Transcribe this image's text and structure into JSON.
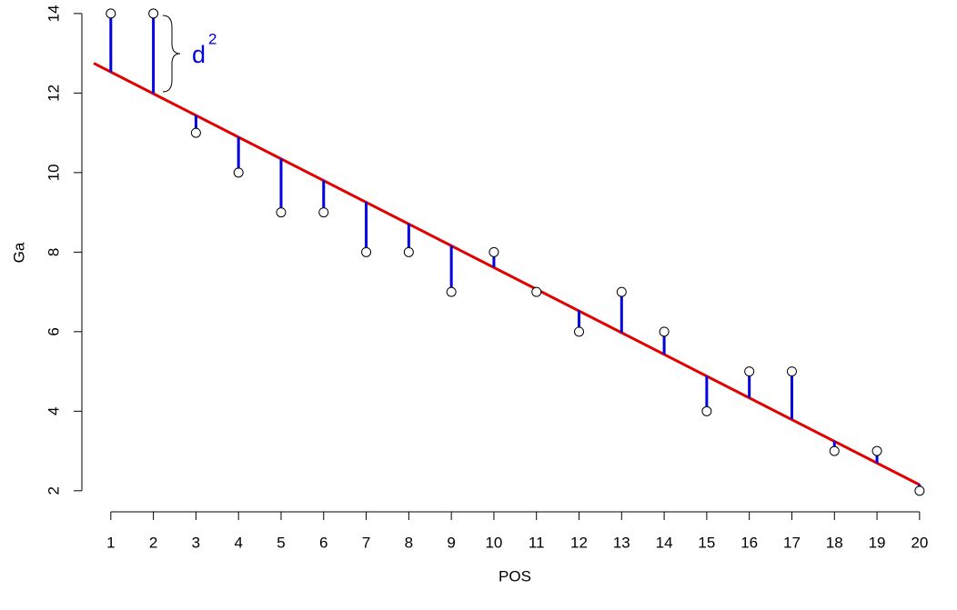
{
  "chart_data": {
    "type": "scatter",
    "x_label": "POS",
    "y_label": "Ga",
    "annotation": "d",
    "annotation_sup": "2",
    "x": [
      1,
      2,
      3,
      4,
      5,
      6,
      7,
      8,
      9,
      10,
      11,
      12,
      13,
      14,
      15,
      16,
      17,
      18,
      19,
      20
    ],
    "values": [
      14,
      14,
      11,
      10,
      9,
      9,
      8,
      8,
      7,
      8,
      7,
      6,
      7,
      6,
      4,
      5,
      5,
      3,
      3,
      2
    ],
    "fitted": [
      12.53,
      11.99,
      11.44,
      10.89,
      10.35,
      9.8,
      9.26,
      8.71,
      8.16,
      7.62,
      7.07,
      6.53,
      5.98,
      5.43,
      4.89,
      4.34,
      3.8,
      3.25,
      2.7,
      2.16
    ],
    "fit_line": {
      "x": [
        0.6,
        20
      ],
      "y": [
        12.75,
        2.15
      ],
      "color": "#e00000"
    },
    "point_color": "#000000",
    "residual_color": "#0000e0",
    "xlim": [
      0.32,
      20.73
    ],
    "ylim": [
      1.47,
      14.34
    ],
    "xticks": [
      1,
      2,
      3,
      4,
      5,
      6,
      7,
      8,
      9,
      10,
      11,
      12,
      13,
      14,
      15,
      16,
      17,
      18,
      19,
      20
    ],
    "yticks": [
      2,
      4,
      6,
      8,
      10,
      12,
      14
    ]
  }
}
